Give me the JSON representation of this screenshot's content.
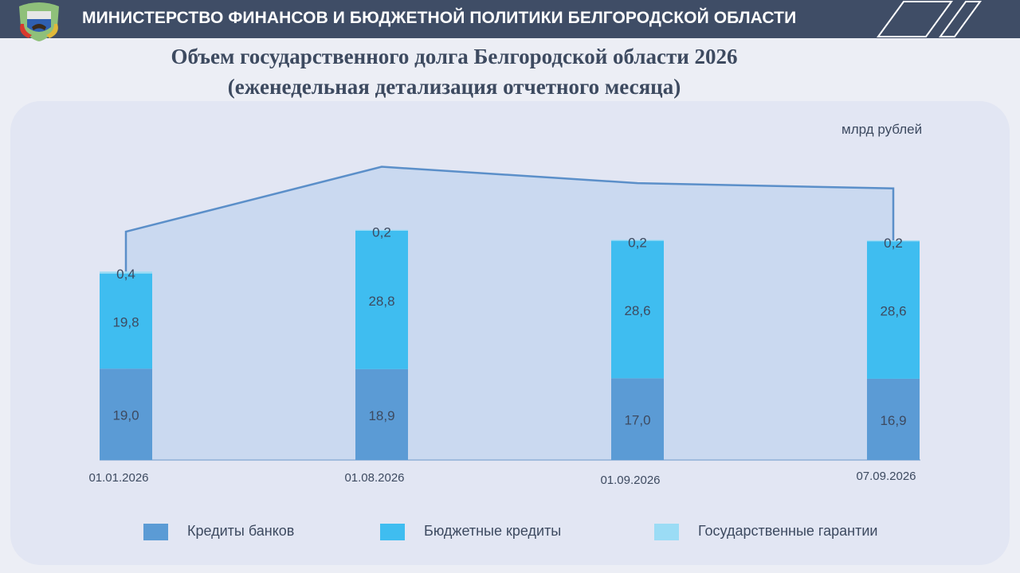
{
  "header": {
    "title": "МИНИСТЕРСТВО ФИНАНСОВ И БЮДЖЕТНОЙ ПОЛИТИКИ БЕЛГОРОДСКОЙ ОБЛАСТИ"
  },
  "chart_title": {
    "line1": "Объем государственного долга Белгородской области 2026",
    "line2": "(еженедельная детализация отчетного месяца)"
  },
  "unit_label": "млрд рублей",
  "colors": {
    "header_bg": "#3f4d66",
    "bank_credits": "#5b9bd5",
    "budget_credits": "#3fbdf0",
    "guarantees": "#9bdcf5",
    "total_area": "#c5d6ef",
    "total_line": "#5b8fc9"
  },
  "chart_data": {
    "type": "bar",
    "stacked": true,
    "categories": [
      "01.01.2026",
      "01.08.2026",
      "01.09.2026",
      "07.09.2026"
    ],
    "series": [
      {
        "name": "Кредиты банков",
        "values": [
          19.0,
          18.9,
          17.0,
          16.9
        ],
        "labels": [
          "19,0",
          "18,9",
          "17,0",
          "16,9"
        ]
      },
      {
        "name": "Бюджетные кредиты",
        "values": [
          19.8,
          28.8,
          28.6,
          28.6
        ],
        "labels": [
          "19,8",
          "28,8",
          "28,6",
          "28,6"
        ]
      },
      {
        "name": "Государственные гарантии",
        "values": [
          0.4,
          0.2,
          0.2,
          0.2
        ],
        "labels": [
          "0,4",
          "0,2",
          "0,2",
          "0,2"
        ]
      }
    ],
    "total_overlay": {
      "type": "area",
      "values": [
        47.5,
        61.0,
        57.6,
        56.5
      ]
    },
    "ylabel": "млрд рублей",
    "ylim": [
      0,
      65
    ],
    "grid": false,
    "legend_position": "bottom"
  }
}
